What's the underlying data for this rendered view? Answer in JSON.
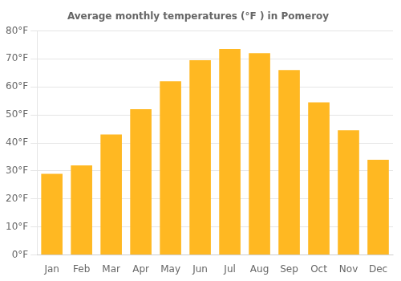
{
  "chart_data": {
    "type": "bar",
    "title": "Average monthly temperatures (°F ) in Pomeroy",
    "categories": [
      "Jan",
      "Feb",
      "Mar",
      "Apr",
      "May",
      "Jun",
      "Jul",
      "Aug",
      "Sep",
      "Oct",
      "Nov",
      "Dec"
    ],
    "values": [
      29,
      32,
      43,
      52,
      62,
      69.5,
      73.5,
      72,
      66,
      54.5,
      44.5,
      34
    ],
    "color": "#FFB822",
    "ylim": [
      0,
      80
    ],
    "yticks": [
      {
        "value": 0,
        "label": "0°F"
      },
      {
        "value": 10,
        "label": "10°F"
      },
      {
        "value": 20,
        "label": "20°F"
      },
      {
        "value": 30,
        "label": "30°F"
      },
      {
        "value": 40,
        "label": "40°F"
      },
      {
        "value": 50,
        "label": "50°F"
      },
      {
        "value": 60,
        "label": "60°F"
      },
      {
        "value": 70,
        "label": "70°F"
      },
      {
        "value": 80,
        "label": "80°F"
      }
    ],
    "grid": true
  }
}
